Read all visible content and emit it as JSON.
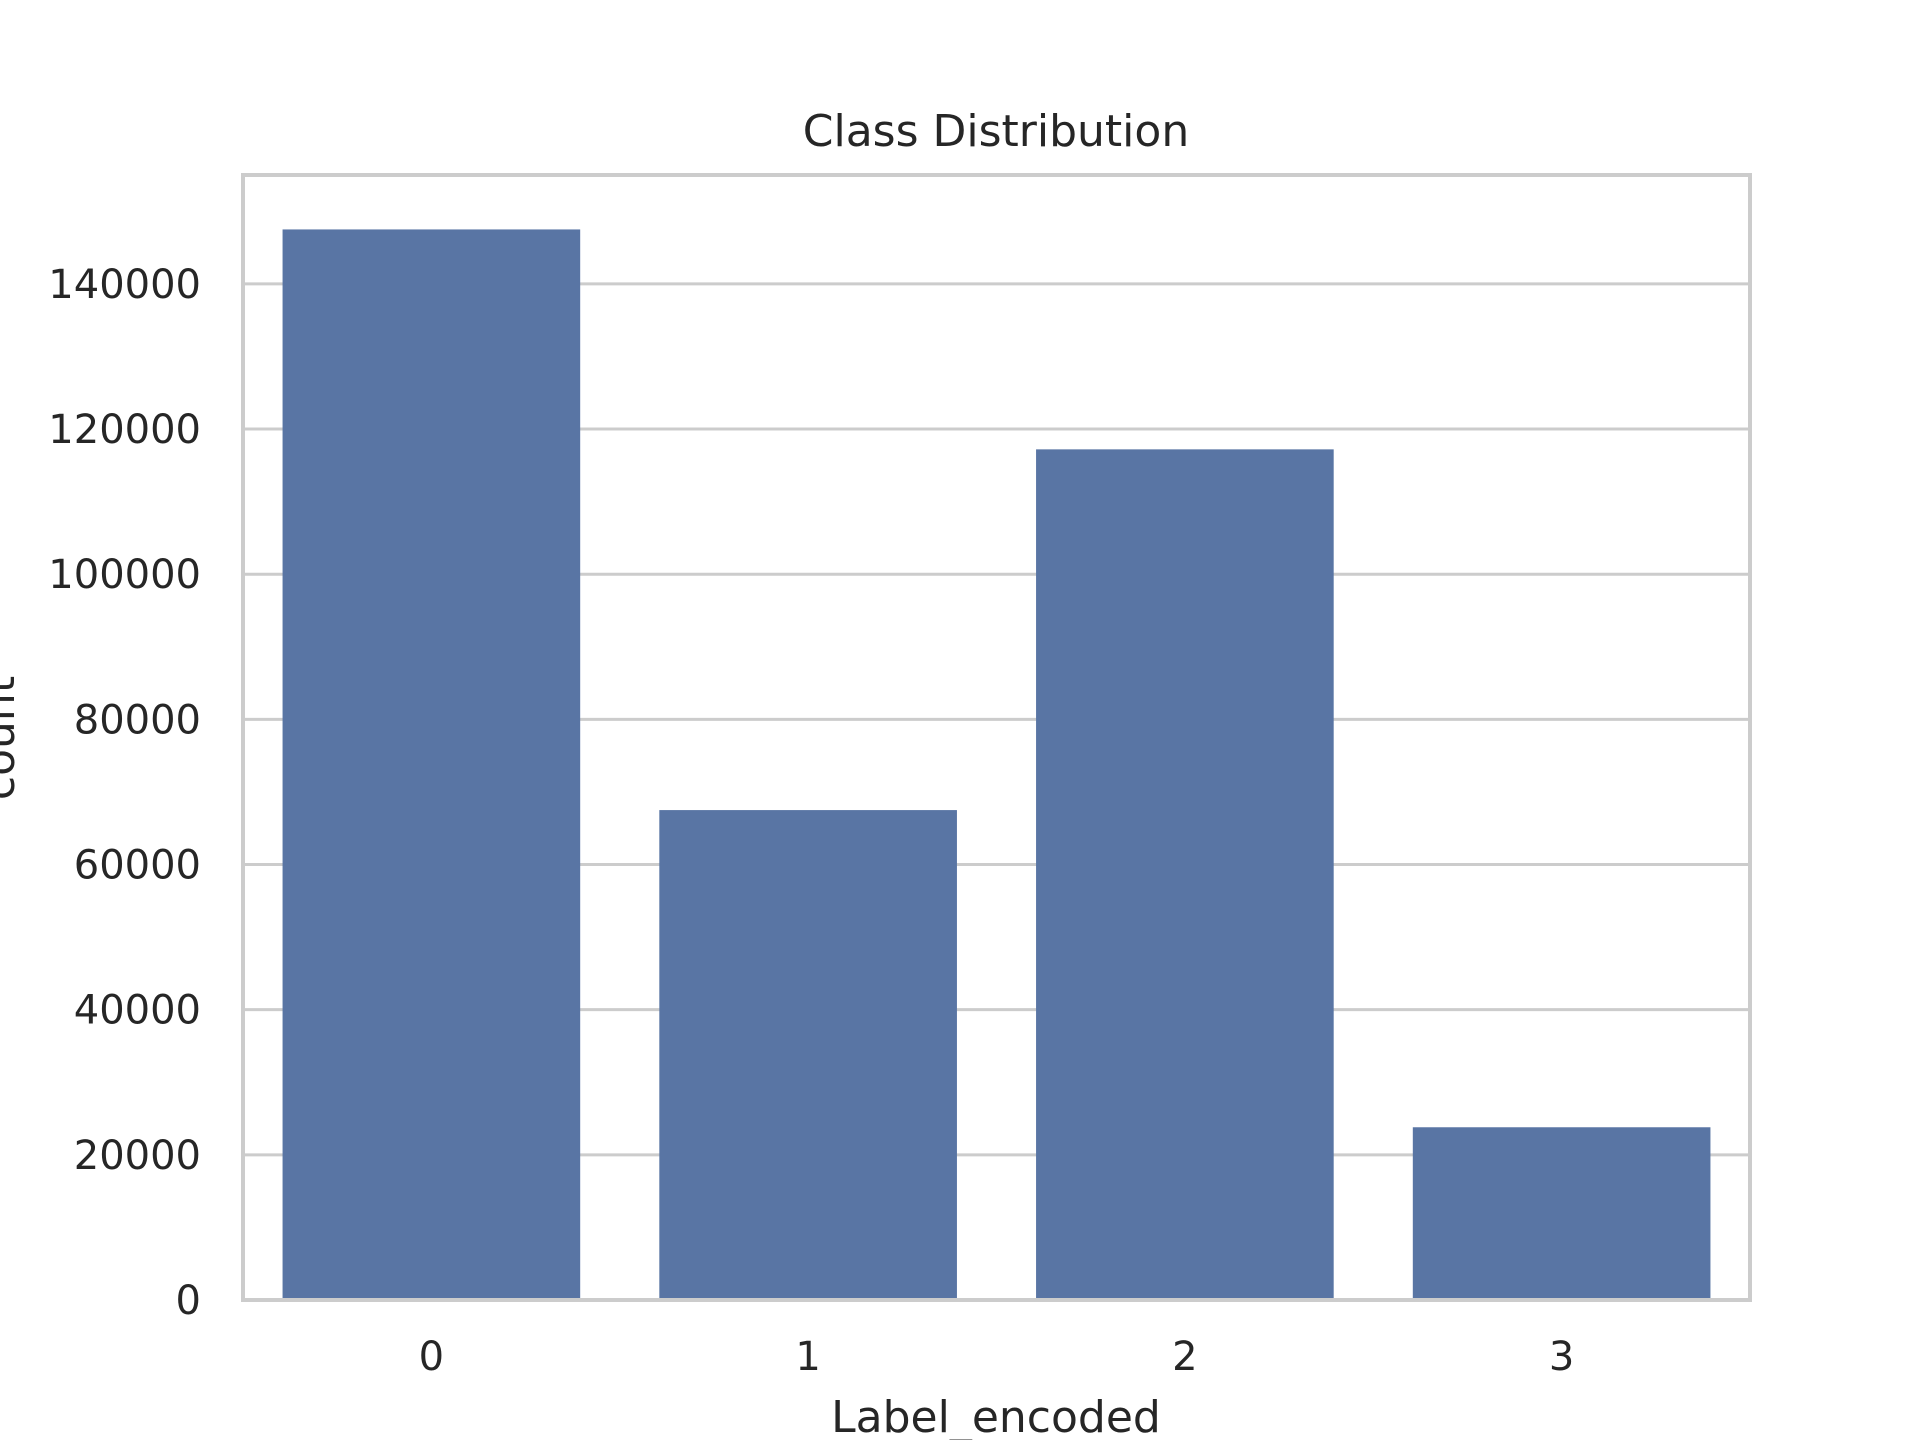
{
  "chart_data": {
    "type": "bar",
    "title": "Class Distribution",
    "xlabel": "Label_encoded",
    "ylabel": "count",
    "categories": [
      "0",
      "1",
      "2",
      "3"
    ],
    "values": [
      147500,
      67500,
      117200,
      23800
    ],
    "ylim": [
      0,
      155000
    ],
    "yticks": [
      0,
      20000,
      40000,
      60000,
      80000,
      100000,
      120000,
      140000
    ],
    "ytick_labels": [
      "0",
      "20000",
      "40000",
      "60000",
      "80000",
      "100000",
      "120000",
      "140000"
    ],
    "grid": "y",
    "legend": "none",
    "bar_color": "#5975a4",
    "grid_color": "#cccccc",
    "frame_color": "#cccccc",
    "text_color": "#262626"
  }
}
